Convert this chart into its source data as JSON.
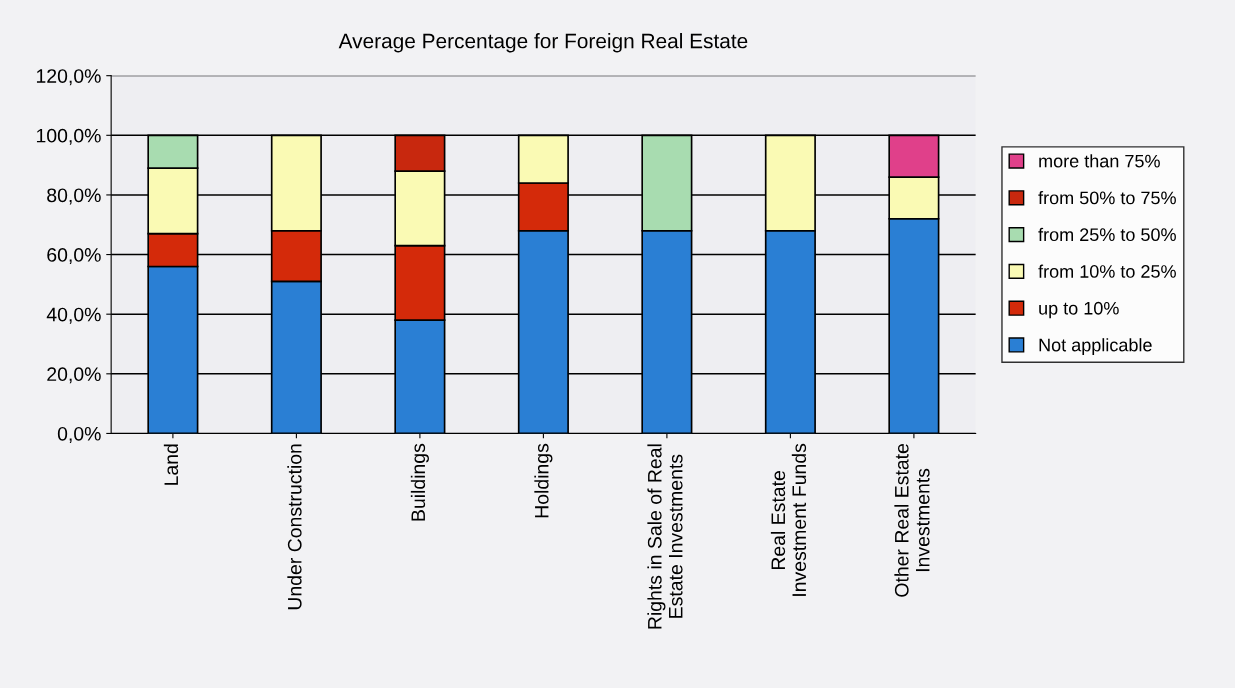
{
  "chart_data": {
    "type": "bar",
    "title": "Average Percentage for Foreign Real Estate",
    "stacked": true,
    "categories": [
      "Land",
      "Under Construction",
      "Buildings",
      "Holdings",
      "Rights in Sale of Real Estate Investments",
      "Real Estate Investment Funds",
      "Other Real Estate Investments"
    ],
    "series": [
      {
        "name": "Not applicable",
        "color": "#2a7fd4",
        "values": [
          56,
          51,
          38,
          68,
          68,
          68,
          72
        ]
      },
      {
        "name": "up to 10%",
        "color": "#d42a0a",
        "values": [
          11,
          17,
          25,
          16,
          null,
          null,
          null
        ]
      },
      {
        "name": "from 10% to 25%",
        "color": "#fafab4",
        "values": [
          22,
          32,
          25,
          16,
          null,
          32,
          14
        ]
      },
      {
        "name": "from 25% to 50%",
        "color": "#a8dcb0",
        "values": [
          11,
          null,
          null,
          null,
          32,
          null,
          null
        ]
      },
      {
        "name": "from 50% to 75%",
        "color": "#c8280e",
        "values": [
          null,
          null,
          12,
          null,
          null,
          null,
          null
        ]
      },
      {
        "name": "more than 75%",
        "color": "#e0408a",
        "values": [
          null,
          null,
          null,
          null,
          null,
          null,
          14
        ]
      }
    ],
    "ylim": [
      0,
      120
    ],
    "yticks": [
      {
        "value": 0,
        "label": "0,0%"
      },
      {
        "value": 20,
        "label": "20,0%"
      },
      {
        "value": 40,
        "label": "40,0%"
      },
      {
        "value": 60,
        "label": "60,0%"
      },
      {
        "value": 80,
        "label": "80,0%"
      },
      {
        "value": 100,
        "label": "100,0%"
      },
      {
        "value": 120,
        "label": "120,0%"
      }
    ],
    "grid": "y",
    "legend": "right"
  }
}
